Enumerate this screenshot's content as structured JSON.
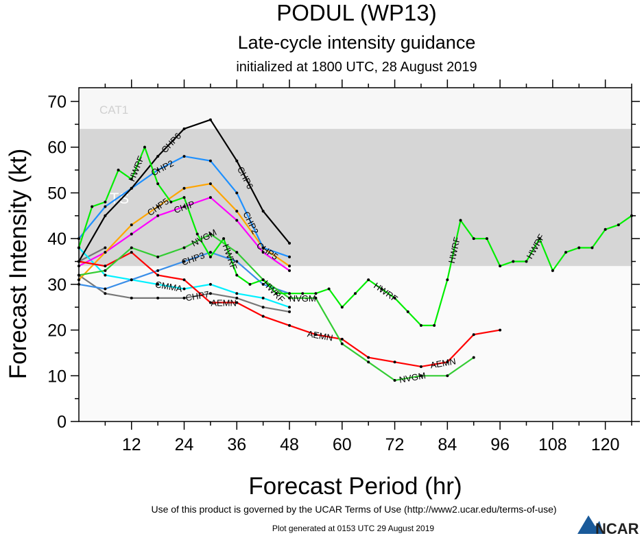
{
  "chart_data": {
    "type": "line",
    "title": "PODUL (WP13)",
    "subtitle": "Late-cycle intensity guidance",
    "subtitle2": "initialized at 1800 UTC, 28 August 2019",
    "xlabel": "Forecast Period (hr)",
    "ylabel": "Forecast Intensity (kt)",
    "xlim": [
      0,
      126
    ],
    "ylim": [
      0,
      73
    ],
    "xticks": [
      12,
      24,
      36,
      48,
      60,
      72,
      84,
      96,
      108,
      120
    ],
    "yticks": [
      0,
      10,
      20,
      30,
      40,
      50,
      60,
      70
    ],
    "grid": false,
    "bands": [
      {
        "label": "",
        "from": 0,
        "to": 34,
        "color": "#fafafa"
      },
      {
        "label": "TS",
        "from": 34,
        "to": 64,
        "color": "#d6d6d6",
        "label_color": "#ffffff"
      },
      {
        "label": "CAT1",
        "from": 64,
        "to": 73,
        "color": "#f7f7f7",
        "label_color": "#d0d0d0"
      }
    ],
    "series": [
      {
        "name": "CHP7",
        "color": "#777777",
        "labels_at": [
          27
        ],
        "x": [
          0,
          6,
          12,
          18,
          24,
          30,
          36,
          42,
          48
        ],
        "y": [
          32,
          28,
          27,
          27,
          27,
          28,
          27,
          25,
          24
        ]
      },
      {
        "name": "",
        "color": "#777777",
        "labels_at": [],
        "x": [
          0,
          6
        ],
        "y": [
          35,
          38
        ]
      },
      {
        "name": "CMMA",
        "color": "#00f0ff",
        "labels_at": [
          25
        ],
        "x": [
          0,
          6,
          12,
          18,
          24,
          30,
          36,
          42,
          48
        ],
        "y": [
          38,
          32,
          31,
          30,
          29,
          30,
          28,
          27,
          25
        ]
      },
      {
        "name": "CHP3",
        "color": "#3a8ee8",
        "labels_at": [
          26
        ],
        "x": [
          0,
          6,
          12,
          18,
          24,
          30,
          36,
          42,
          48
        ],
        "y": [
          30,
          29,
          31,
          33,
          35,
          37,
          35,
          30,
          28
        ]
      },
      {
        "name": "CHIP",
        "color": "#ff00ff",
        "labels_at": [
          24
        ],
        "x": [
          0,
          6,
          12,
          18,
          24,
          30,
          36,
          42,
          48
        ],
        "y": [
          34,
          37,
          41,
          45,
          47,
          49,
          44,
          37,
          33
        ]
      },
      {
        "name": "CHP5",
        "color": "#ffa500",
        "labels_at": [
          21,
          43
        ],
        "x": [
          0,
          6,
          12,
          18,
          24,
          30,
          36,
          42,
          48
        ],
        "y": [
          31,
          37,
          43,
          47,
          51,
          52,
          46,
          38,
          34
        ]
      },
      {
        "name": "CHP2",
        "color": "#1e90ff",
        "labels_at": [
          19,
          43
        ],
        "x": [
          0,
          6,
          12,
          18,
          24,
          30,
          36,
          42,
          48
        ],
        "y": [
          40,
          47,
          51,
          55,
          58,
          57,
          50,
          38,
          36
        ]
      },
      {
        "name": "CHP6",
        "color": "#000000",
        "labels_at": [
          15,
          38
        ],
        "x": [
          0,
          6,
          12,
          18,
          24,
          30,
          36,
          42,
          48
        ],
        "y": [
          35,
          45,
          51,
          58,
          64,
          66,
          57,
          46,
          39
        ]
      },
      {
        "name": "AEMN",
        "color": "#ff0000",
        "labels_at": [
          24,
          55,
          83
        ],
        "x": [
          0,
          6,
          12,
          18,
          24,
          30,
          36,
          42,
          48,
          54,
          60,
          66,
          72,
          78,
          84,
          90,
          96
        ],
        "y": [
          35,
          34,
          37,
          32,
          31,
          26,
          26,
          23,
          21,
          19,
          18,
          14,
          13,
          12,
          13,
          19,
          20
        ]
      },
      {
        "name": "NVGM",
        "color": "#33cc33",
        "labels_at": [
          24,
          51,
          76
        ],
        "x": [
          0,
          6,
          12,
          18,
          24,
          30,
          36,
          42,
          48,
          54,
          60,
          66,
          72,
          78,
          84,
          90
        ],
        "y": [
          32,
          33,
          38,
          36,
          38,
          41,
          37,
          31,
          27,
          27,
          17,
          13,
          9,
          10,
          10,
          14
        ]
      },
      {
        "name": "HWRF",
        "color": "#00ee00",
        "labels_at": [
          13,
          27,
          46,
          70,
          85.5,
          104
        ],
        "x": [
          0,
          3,
          6,
          9,
          12,
          15,
          18,
          21,
          24,
          27,
          30,
          33,
          36,
          39,
          42,
          45,
          48,
          51,
          54,
          57,
          60,
          63,
          66,
          69,
          72,
          75,
          78,
          81,
          84,
          87,
          90,
          93,
          96,
          99,
          102,
          105,
          108,
          111,
          114,
          117,
          120,
          123,
          126
        ],
        "y": [
          38,
          47,
          48,
          55,
          53,
          60,
          52,
          48,
          49,
          41,
          36,
          40,
          32,
          30,
          31,
          28,
          28,
          28,
          28,
          29,
          25,
          28,
          31,
          29,
          27,
          24,
          21,
          21,
          31,
          44,
          40,
          40,
          34,
          35,
          35,
          40,
          33,
          37,
          38,
          38,
          42,
          43,
          45
        ]
      }
    ]
  },
  "footer": {
    "terms": "Use of this product is governed by the UCAR Terms of Use (http://www2.ucar.edu/terms-of-use)",
    "generated": "Plot generated at 0153 UTC  29 August 2019",
    "logo": "NCAR"
  }
}
